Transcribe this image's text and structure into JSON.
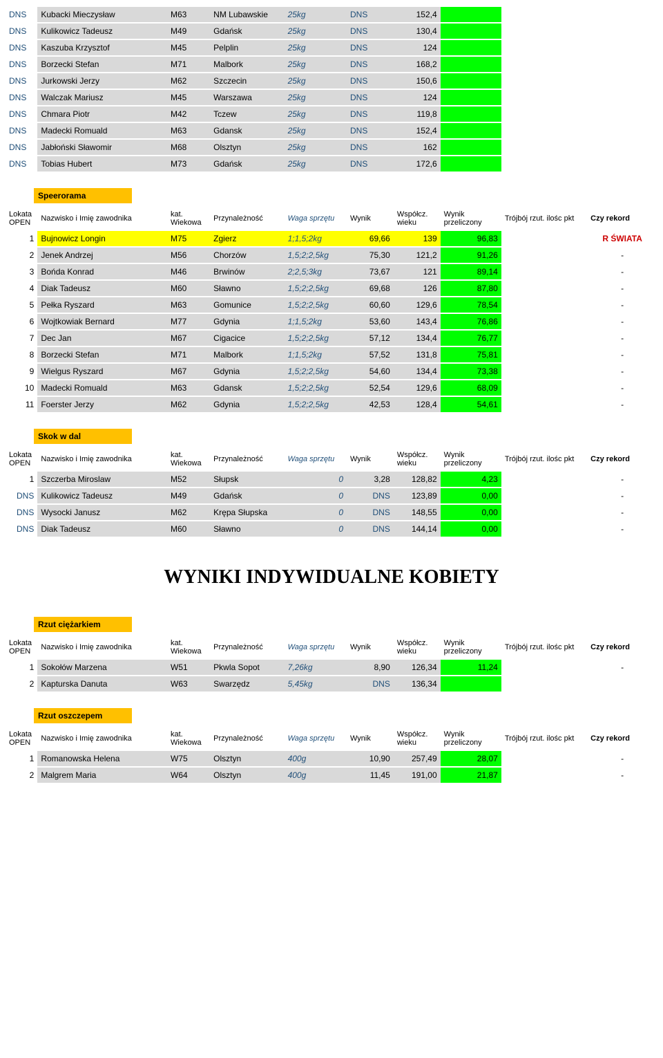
{
  "colors": {
    "gray": "#d9d9d9",
    "yellow": "#ffff00",
    "green": "#00ff00",
    "orange": "#ffc000",
    "italic_blue": "#1f4e78",
    "record_red": "#cc0000"
  },
  "headers": {
    "lokata": "Lokata OPEN",
    "nazwisko": "Nazwisko i Imię zawodnika",
    "kat": "kat. Wiekowa",
    "przyn": "Przynależność",
    "waga": "Waga sprzętu",
    "wynik": "Wynik",
    "wspolcz": "Współcz. wieku",
    "przel": "Wynik przeliczony",
    "pkt": "Trójbój rzut. ilośc pkt",
    "rekord": "Czy rekord"
  },
  "top_rows": [
    [
      "DNS",
      "Kubacki Mieczysław",
      "M63",
      "NM Lubawskie",
      "25kg",
      "DNS",
      "152,4"
    ],
    [
      "DNS",
      "Kulikowicz Tadeusz",
      "M49",
      "Gdańsk",
      "25kg",
      "DNS",
      "130,4"
    ],
    [
      "DNS",
      "Kaszuba Krzysztof",
      "M45",
      "Pelplin",
      "25kg",
      "DNS",
      "124"
    ],
    [
      "DNS",
      "Borzecki Stefan",
      "M71",
      "Malbork",
      "25kg",
      "DNS",
      "168,2"
    ],
    [
      "DNS",
      "Jurkowski Jerzy",
      "M62",
      "Szczecin",
      "25kg",
      "DNS",
      "150,6"
    ],
    [
      "DNS",
      "Walczak Mariusz",
      "M45",
      "Warszawa",
      "25kg",
      "DNS",
      "124"
    ],
    [
      "DNS",
      "Chmara Piotr",
      "M42",
      "Tczew",
      "25kg",
      "DNS",
      "119,8"
    ],
    [
      "DNS",
      "Madecki Romuald",
      "M63",
      "Gdansk",
      "25kg",
      "DNS",
      "152,4"
    ],
    [
      "DNS",
      "Jabłoński Sławomir",
      "M68",
      "Olsztyn",
      "25kg",
      "DNS",
      "162"
    ],
    [
      "DNS",
      "Tobias Hubert",
      "M73",
      "Gdańsk",
      "25kg",
      "DNS",
      "172,6"
    ]
  ],
  "speerorama": {
    "title": "Speerorama",
    "rows": [
      {
        "lok": "1",
        "n": "Bujnowicz Longin",
        "k": "M75",
        "p": "Zgierz",
        "w": "1;1,5;2kg",
        "wy": "69,66",
        "ws": "139",
        "pr": "96,83",
        "rk": "R ŚWIATA",
        "hl": "yellow"
      },
      {
        "lok": "2",
        "n": "Jenek Andrzej",
        "k": "M56",
        "p": "Chorzów",
        "w": "1,5;2;2,5kg",
        "wy": "75,30",
        "ws": "121,2",
        "pr": "91,26",
        "rk": "-"
      },
      {
        "lok": "3",
        "n": "Bońda Konrad",
        "k": "M46",
        "p": "Brwinów",
        "w": "2;2,5;3kg",
        "wy": "73,67",
        "ws": "121",
        "pr": "89,14",
        "rk": "-"
      },
      {
        "lok": "4",
        "n": "Diak Tadeusz",
        "k": "M60",
        "p": "Sławno",
        "w": "1,5;2;2,5kg",
        "wy": "69,68",
        "ws": "126",
        "pr": "87,80",
        "rk": "-"
      },
      {
        "lok": "5",
        "n": "Pełka Ryszard",
        "k": "M63",
        "p": "Gomunice",
        "w": "1,5;2;2,5kg",
        "wy": "60,60",
        "ws": "129,6",
        "pr": "78,54",
        "rk": "-"
      },
      {
        "lok": "6",
        "n": "Wojtkowiak Bernard",
        "k": "M77",
        "p": "Gdynia",
        "w": "1;1,5;2kg",
        "wy": "53,60",
        "ws": "143,4",
        "pr": "76,86",
        "rk": "-"
      },
      {
        "lok": "7",
        "n": "Dec Jan",
        "k": "M67",
        "p": "Cigacice",
        "w": "1,5;2;2,5kg",
        "wy": "57,12",
        "ws": "134,4",
        "pr": "76,77",
        "rk": "-"
      },
      {
        "lok": "8",
        "n": "Borzecki Stefan",
        "k": "M71",
        "p": "Malbork",
        "w": "1;1,5;2kg",
        "wy": "57,52",
        "ws": "131,8",
        "pr": "75,81",
        "rk": "-"
      },
      {
        "lok": "9",
        "n": "Wielgus Ryszard",
        "k": "M67",
        "p": "Gdynia",
        "w": "1,5;2;2,5kg",
        "wy": "54,60",
        "ws": "134,4",
        "pr": "73,38",
        "rk": "-"
      },
      {
        "lok": "10",
        "n": "Madecki Romuald",
        "k": "M63",
        "p": "Gdansk",
        "w": "1,5;2;2,5kg",
        "wy": "52,54",
        "ws": "129,6",
        "pr": "68,09",
        "rk": "-"
      },
      {
        "lok": "11",
        "n": "Foerster Jerzy",
        "k": "M62",
        "p": "Gdynia",
        "w": "1,5;2;2,5kg",
        "wy": "42,53",
        "ws": "128,4",
        "pr": "54,61",
        "rk": "-"
      }
    ]
  },
  "skok": {
    "title": "Skok w dal",
    "rows": [
      {
        "lok": "1",
        "n": "Szczerba Miroslaw",
        "k": "M52",
        "p": "Słupsk",
        "w": "0",
        "wy": "3,28",
        "ws": "128,82",
        "pr": "4,23",
        "rk": "-"
      },
      {
        "lok": "DNS",
        "n": "Kulikowicz Tadeusz",
        "k": "M49",
        "p": "Gdańsk",
        "w": "0",
        "wy": "DNS",
        "ws": "123,89",
        "pr": "0,00",
        "rk": "-"
      },
      {
        "lok": "DNS",
        "n": "Wysocki Janusz",
        "k": "M62",
        "p": "Krępa Słupska",
        "w": "0",
        "wy": "DNS",
        "ws": "148,55",
        "pr": "0,00",
        "rk": "-"
      },
      {
        "lok": "DNS",
        "n": "Diak Tadeusz",
        "k": "M60",
        "p": "Sławno",
        "w": "0",
        "wy": "DNS",
        "ws": "144,14",
        "pr": "0,00",
        "rk": "-"
      }
    ]
  },
  "main_title": "WYNIKI INDYWIDUALNE KOBIETY",
  "rzut_c": {
    "title": "Rzut ciężarkiem",
    "rows": [
      {
        "lok": "1",
        "n": "Sokołów Marzena",
        "k": "W51",
        "p": "Pkwla Sopot",
        "w": "7,26kg",
        "wy": "8,90",
        "ws": "126,34",
        "pr": "11,24",
        "rk": "-"
      },
      {
        "lok": "2",
        "n": "Kapturska Danuta",
        "k": "W63",
        "p": "Swarzędz",
        "w": "5,45kg",
        "wy": "DNS",
        "ws": "136,34",
        "pr": "",
        "rk": ""
      }
    ]
  },
  "rzut_o": {
    "title": "Rzut oszczepem",
    "rows": [
      {
        "lok": "1",
        "n": "Romanowska Helena",
        "k": "W75",
        "p": "Olsztyn",
        "w": "400g",
        "wy": "10,90",
        "ws": "257,49",
        "pr": "28,07",
        "rk": "-"
      },
      {
        "lok": "2",
        "n": "Malgrem Maria",
        "k": "W64",
        "p": "Olsztyn",
        "w": "400g",
        "wy": "11,45",
        "ws": "191,00",
        "pr": "21,87",
        "rk": "-"
      }
    ]
  }
}
